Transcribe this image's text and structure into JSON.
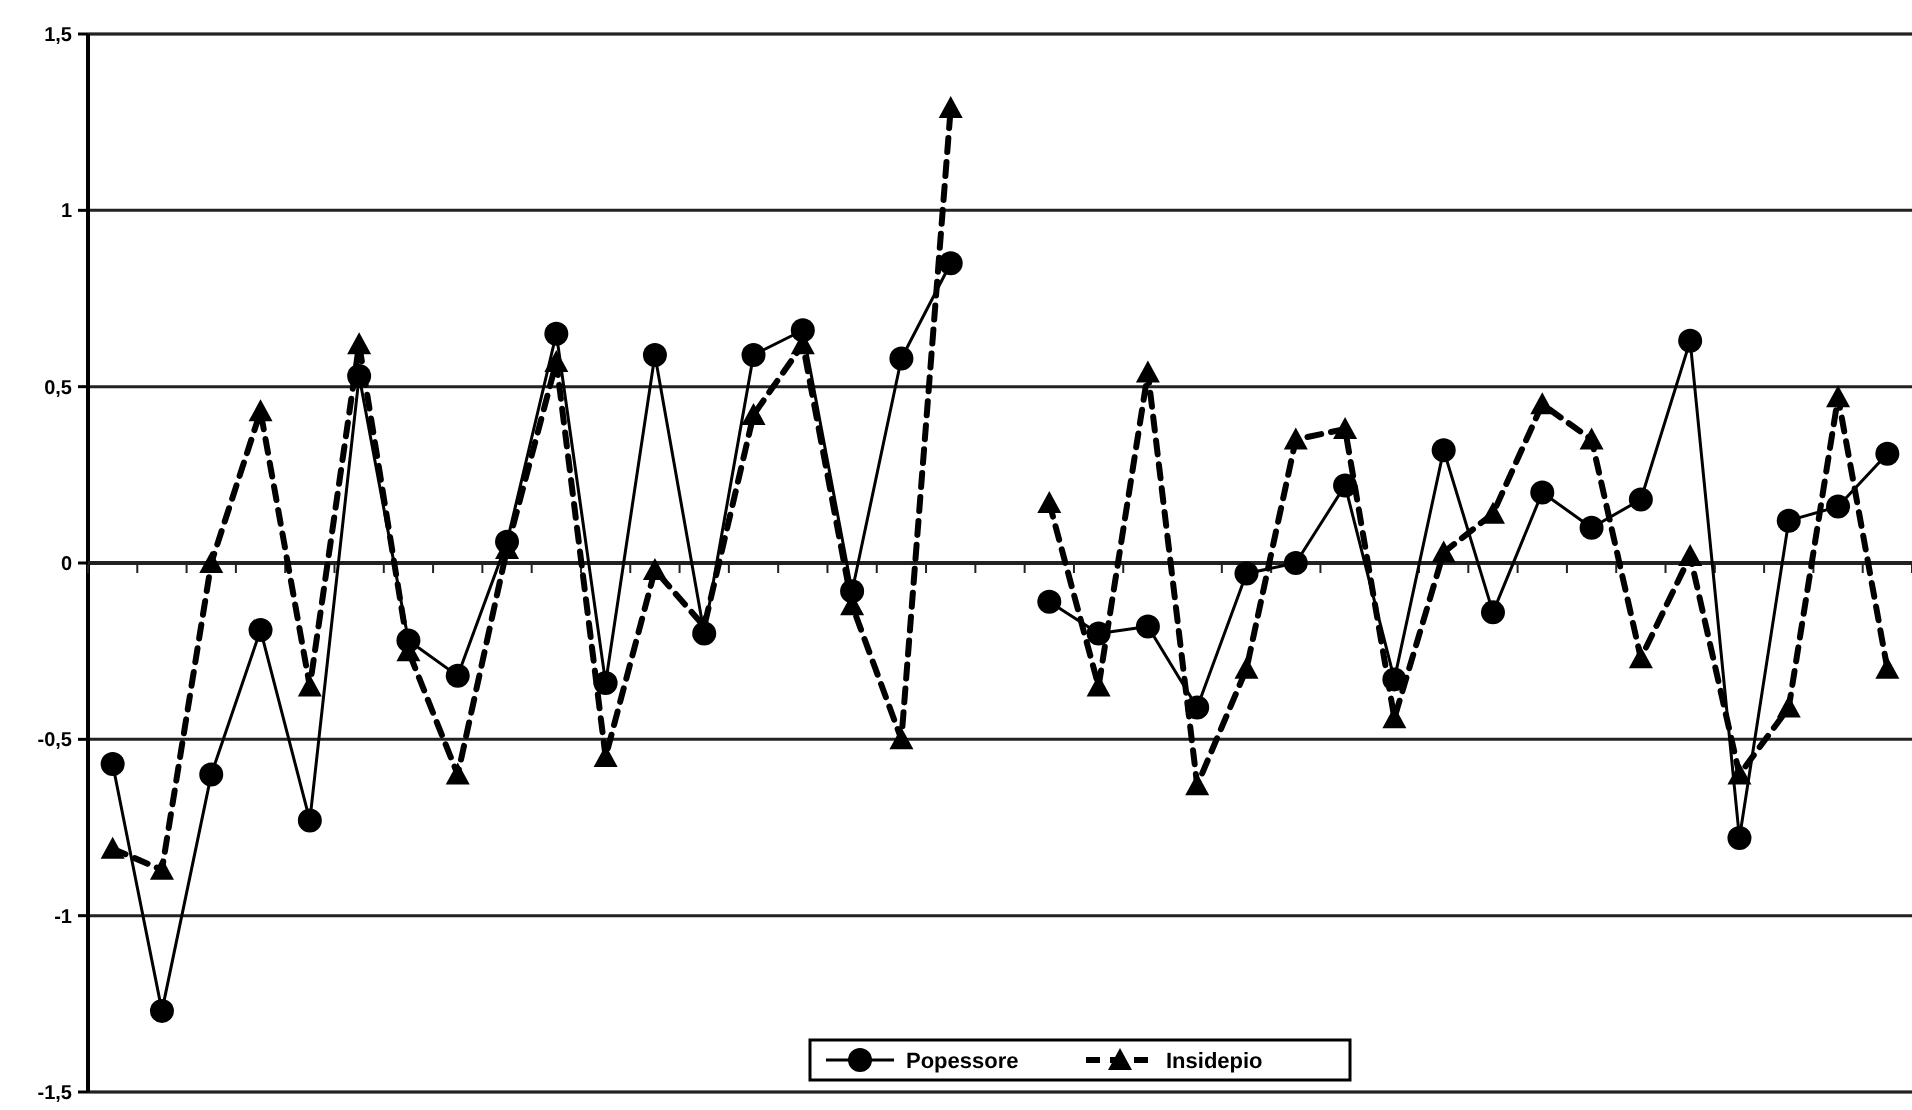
{
  "chart_data": {
    "type": "line",
    "categories": [
      null,
      null,
      null,
      null,
      null,
      null,
      null,
      null,
      null,
      null,
      null,
      null,
      null,
      null,
      null,
      null,
      null,
      null,
      null,
      null,
      null,
      null,
      null,
      null,
      null,
      null,
      null,
      null,
      null,
      null,
      null,
      null,
      null,
      null,
      null,
      null,
      null
    ],
    "series": [
      {
        "name": "Popessore",
        "color": "#000000",
        "marker": "circle",
        "line_style": "solid",
        "values": [
          -0.57,
          -1.27,
          -0.6,
          -0.19,
          -0.73,
          0.53,
          -0.22,
          -0.32,
          0.06,
          0.65,
          -0.34,
          0.59,
          -0.2,
          0.59,
          0.66,
          -0.08,
          0.58,
          0.85,
          null,
          -0.11,
          -0.2,
          -0.18,
          -0.41,
          -0.03,
          0,
          0.22,
          -0.33,
          0.32,
          -0.14,
          0.2,
          0.1,
          0.18,
          0.63,
          -0.78,
          0.12,
          0.16,
          0.31
        ]
      },
      {
        "name": "Insidepio",
        "color": "#000000",
        "marker": "triangle",
        "line_style": "dashed",
        "values": [
          -0.81,
          -0.87,
          0,
          0.43,
          -0.35,
          0.62,
          -0.25,
          -0.6,
          0.04,
          0.57,
          -0.55,
          -0.02,
          -0.18,
          0.42,
          0.62,
          -0.12,
          -0.5,
          1.29,
          null,
          0.17,
          -0.35,
          0.54,
          -0.63,
          -0.3,
          0.35,
          0.38,
          -0.44,
          0.03,
          0.14,
          0.45,
          0.35,
          -0.27,
          0.02,
          -0.6,
          -0.41,
          0.47,
          -0.3
        ]
      }
    ],
    "ylim": [
      -1.5,
      1.5
    ],
    "yticks": [
      {
        "value": -1.5,
        "label": "-1,5"
      },
      {
        "value": -1,
        "label": "-1"
      },
      {
        "value": -0.5,
        "label": "-0,5"
      },
      {
        "value": 0,
        "label": "0"
      },
      {
        "value": 0.5,
        "label": "0,5"
      },
      {
        "value": 1,
        "label": "1"
      },
      {
        "value": 1.5,
        "label": "1,5"
      }
    ],
    "grid": "y",
    "legend": "bottom"
  }
}
